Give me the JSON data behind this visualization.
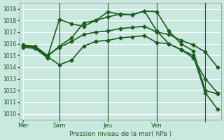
{
  "title": "Pression niveau de la mer( hPa )",
  "ylabel_vals": [
    1010,
    1011,
    1012,
    1013,
    1014,
    1015,
    1016,
    1017,
    1018,
    1019
  ],
  "ymin": 1009.5,
  "ymax": 1019.5,
  "bg_color": "#c8e8e0",
  "grid_color": "#ffffff",
  "line_color": "#1a5c1a",
  "text_color": "#1a5c1a",
  "xtick_positions": [
    0,
    3,
    7,
    11,
    15
  ],
  "xtick_labels": [
    "Mer",
    "Sam",
    "Jeu",
    "Ven",
    ""
  ],
  "vline_positions": [
    3,
    7,
    11,
    15
  ],
  "series": [
    {
      "x": [
        0,
        1,
        2,
        3,
        4,
        5,
        6,
        7,
        8,
        9,
        10,
        11,
        12,
        13,
        14,
        15,
        16
      ],
      "y": [
        1015.8,
        1015.7,
        1014.9,
        1014.2,
        1014.6,
        1015.8,
        1016.2,
        1016.3,
        1016.5,
        1016.6,
        1016.7,
        1016.1,
        1016.0,
        1015.5,
        1014.8,
        1013.0,
        1011.8
      ],
      "marker": "D",
      "markersize": 2.5,
      "linewidth": 1.2
    },
    {
      "x": [
        0,
        1,
        2,
        3,
        4,
        5,
        6,
        7,
        8,
        9,
        10,
        11,
        12,
        13,
        14,
        15,
        16
      ],
      "y": [
        1015.9,
        1015.8,
        1015.0,
        1015.7,
        1016.2,
        1016.8,
        1017.0,
        1017.1,
        1017.3,
        1017.4,
        1017.5,
        1017.0,
        1016.8,
        1016.3,
        1015.9,
        1015.3,
        1014.0
      ],
      "marker": "D",
      "markersize": 2.5,
      "linewidth": 1.2
    },
    {
      "x": [
        0,
        1,
        2,
        3,
        4,
        5,
        6,
        7,
        8,
        9,
        10,
        11,
        12,
        13,
        14,
        15,
        16
      ],
      "y": [
        1015.7,
        1015.6,
        1014.8,
        1018.1,
        1017.7,
        1017.5,
        1018.0,
        1018.75,
        1018.5,
        1018.5,
        1018.8,
        1018.75,
        1017.1,
        1016.0,
        1015.4,
        1012.0,
        1011.7
      ],
      "marker": "D",
      "markersize": 2.5,
      "linewidth": 1.2
    },
    {
      "x": [
        0,
        1,
        2,
        3,
        4,
        5,
        6,
        7,
        8,
        9,
        10,
        11,
        12,
        13,
        14,
        15,
        16
      ],
      "y": [
        1015.9,
        1015.7,
        1014.9,
        1015.8,
        1016.5,
        1017.8,
        1018.0,
        1018.3,
        1018.55,
        1018.5,
        1018.8,
        1017.1,
        1016.0,
        1015.5,
        1015.0,
        1011.8,
        1010.4
      ],
      "marker": "D",
      "markersize": 2.5,
      "linewidth": 1.2
    }
  ]
}
